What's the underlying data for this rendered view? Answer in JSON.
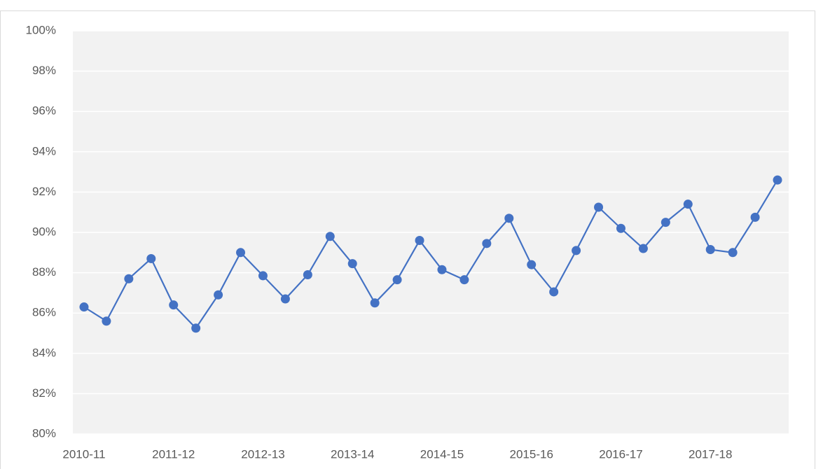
{
  "chart_data": {
    "type": "line",
    "categories": [
      "2010-11",
      null,
      null,
      null,
      "2011-12",
      null,
      null,
      null,
      "2012-13",
      null,
      null,
      null,
      "2013-14",
      null,
      null,
      null,
      "2014-15",
      null,
      null,
      null,
      "2015-16",
      null,
      null,
      null,
      "2016-17",
      null,
      null,
      null,
      "2017-18",
      null,
      null,
      null
    ],
    "values": [
      86.3,
      85.6,
      87.7,
      88.7,
      86.4,
      85.25,
      86.9,
      89.0,
      87.85,
      86.7,
      87.9,
      89.8,
      88.45,
      86.5,
      87.65,
      89.6,
      88.15,
      87.65,
      89.45,
      90.7,
      88.4,
      87.05,
      89.1,
      91.25,
      90.2,
      89.2,
      90.5,
      91.4,
      89.15,
      89.0,
      90.75,
      92.6
    ],
    "color": "#4472c4",
    "ylim": [
      80,
      100
    ],
    "yticks": [
      {
        "value": 80,
        "label": "80%"
      },
      {
        "value": 82,
        "label": "82%"
      },
      {
        "value": 84,
        "label": "84%"
      },
      {
        "value": 86,
        "label": "86%"
      },
      {
        "value": 88,
        "label": "88%"
      },
      {
        "value": 90,
        "label": "90%"
      },
      {
        "value": 92,
        "label": "92%"
      },
      {
        "value": 94,
        "label": "94%"
      },
      {
        "value": 96,
        "label": "96%"
      },
      {
        "value": 98,
        "label": "98%"
      },
      {
        "value": 100,
        "label": "100%"
      }
    ],
    "grid": true
  }
}
